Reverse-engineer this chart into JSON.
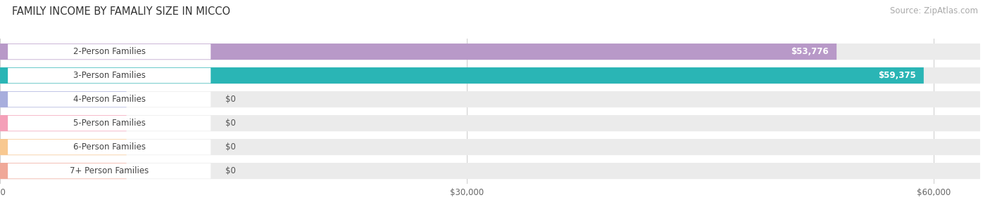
{
  "title": "FAMILY INCOME BY FAMALIY SIZE IN MICCO",
  "source": "Source: ZipAtlas.com",
  "categories": [
    "2-Person Families",
    "3-Person Families",
    "4-Person Families",
    "5-Person Families",
    "6-Person Families",
    "7+ Person Families"
  ],
  "values": [
    53776,
    59375,
    0,
    0,
    0,
    0
  ],
  "bar_colors": [
    "#b899c8",
    "#2ab5b5",
    "#a8aedd",
    "#f4a0b8",
    "#f8c890",
    "#f0a898"
  ],
  "value_labels": [
    "$53,776",
    "$59,375",
    "$0",
    "$0",
    "$0",
    "$0"
  ],
  "xmax": 63000,
  "xticks": [
    0,
    30000,
    60000
  ],
  "xtick_labels": [
    "$0",
    "$30,000",
    "$60,000"
  ],
  "bg_color": "#ffffff",
  "bar_bg_color": "#ebebeb",
  "title_fontsize": 10.5,
  "source_fontsize": 8.5,
  "label_fontsize": 8.5,
  "value_fontsize": 8.5,
  "bar_height": 0.68,
  "bar_gap": 0.32
}
